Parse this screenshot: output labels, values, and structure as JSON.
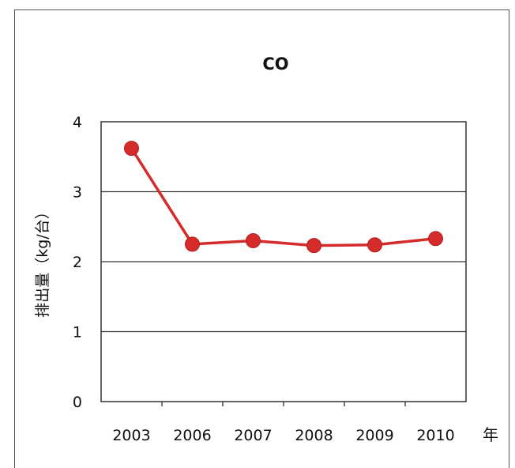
{
  "chart_data": {
    "type": "line",
    "title": "CO",
    "xlabel": "年",
    "ylabel": "排出量（kg/台）",
    "categories": [
      "2003",
      "2006",
      "2007",
      "2008",
      "2009",
      "2010"
    ],
    "y_ticks": [
      "0",
      "1",
      "2",
      "3",
      "4"
    ],
    "ylim": [
      0,
      4
    ],
    "grid": true,
    "series": [
      {
        "values": [
          3.62,
          2.25,
          2.3,
          2.23,
          2.24,
          2.33
        ],
        "color": "#d62b2b"
      }
    ]
  }
}
